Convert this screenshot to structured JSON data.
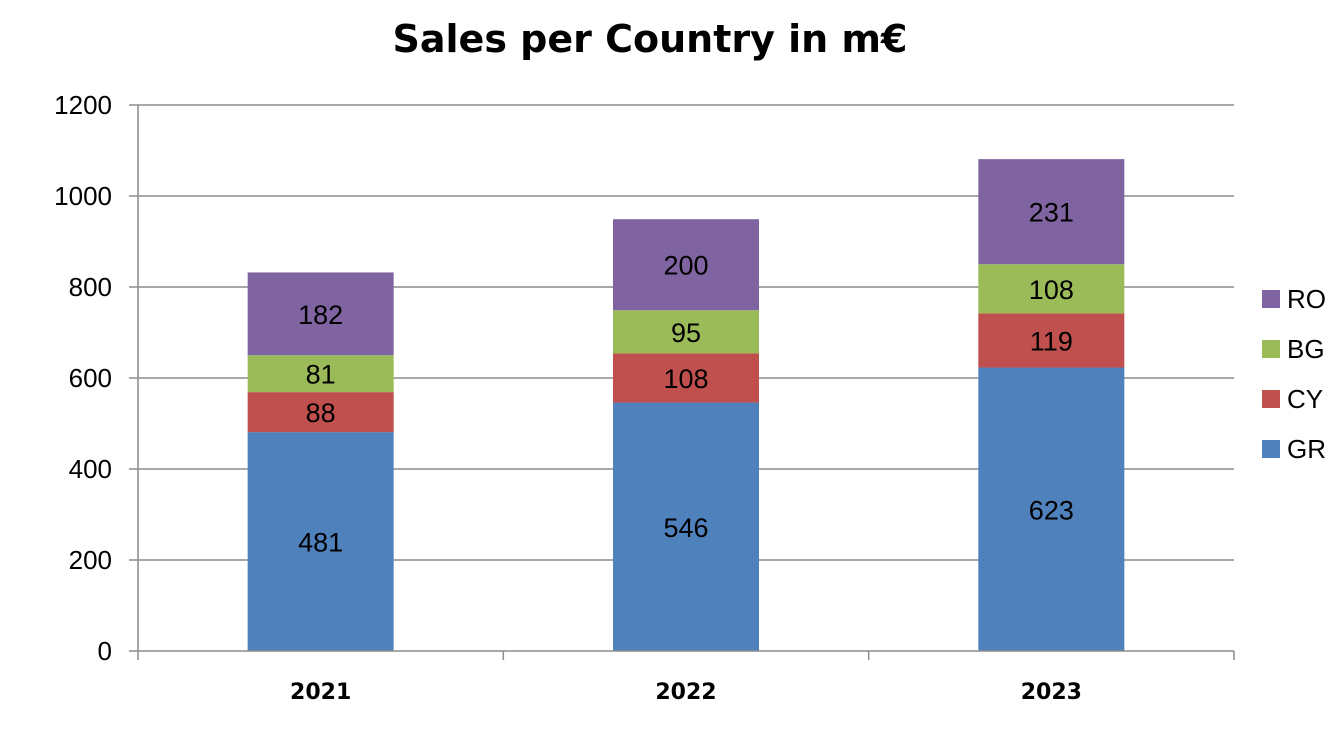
{
  "chart_data": {
    "type": "bar",
    "stacked": true,
    "title": "Sales per Country in m€",
    "xlabel": "",
    "ylabel": "",
    "categories": [
      "2021",
      "2022",
      "2023"
    ],
    "ylim": [
      0,
      1200
    ],
    "yticks": [
      0,
      200,
      400,
      600,
      800,
      1000,
      1200
    ],
    "grid": true,
    "legend_position": "right",
    "series": [
      {
        "name": "GR",
        "color": "#4F81BD",
        "values": [
          481,
          546,
          623
        ]
      },
      {
        "name": "CY",
        "color": "#C0504D",
        "values": [
          88,
          108,
          119
        ]
      },
      {
        "name": "BG",
        "color": "#9BBB59",
        "values": [
          81,
          95,
          108
        ]
      },
      {
        "name": "RO",
        "color": "#8064A2",
        "values": [
          182,
          200,
          231
        ]
      }
    ]
  }
}
